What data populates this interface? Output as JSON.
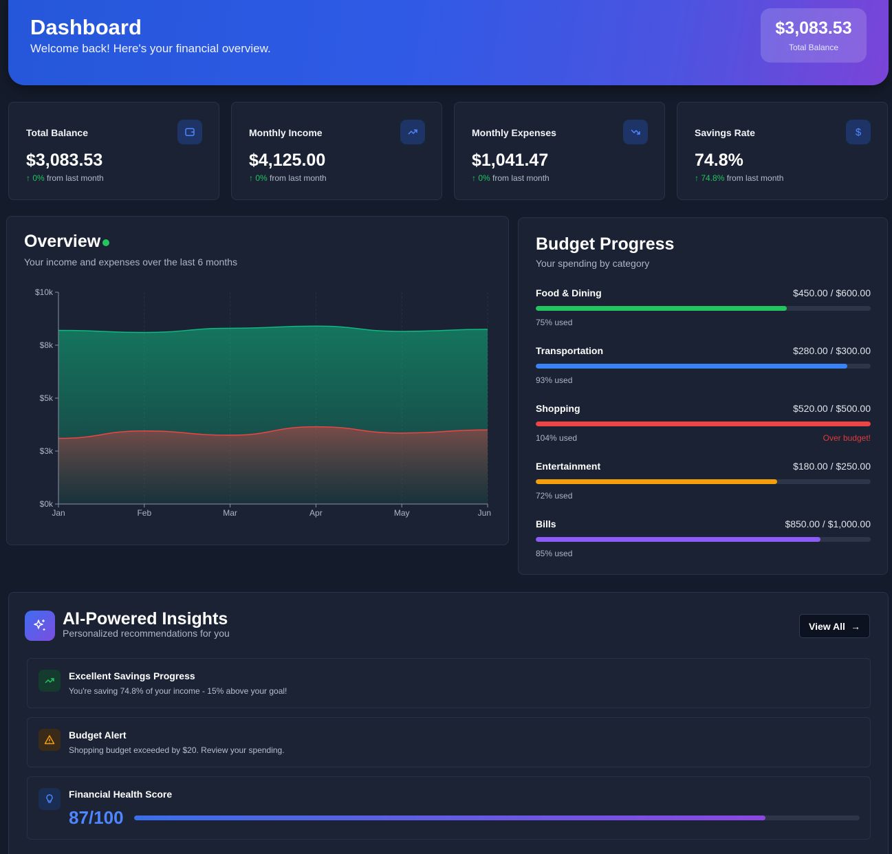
{
  "header": {
    "title": "Dashboard",
    "subtitle": "Welcome back! Here's your financial overview.",
    "balance_amount": "$3,083.53",
    "balance_label": "Total Balance"
  },
  "stats": [
    {
      "title": "Total Balance",
      "value": "$3,083.53",
      "change": "0%",
      "change_text": "from last month",
      "icon": "wallet-icon"
    },
    {
      "title": "Monthly Income",
      "value": "$4,125.00",
      "change": "0%",
      "change_text": "from last month",
      "icon": "trending-up-icon"
    },
    {
      "title": "Monthly Expenses",
      "value": "$1,041.47",
      "change": "0%",
      "change_text": "from last month",
      "icon": "trending-down-icon"
    },
    {
      "title": "Savings Rate",
      "value": "74.8%",
      "change": "74.8%",
      "change_text": "from last month",
      "icon": "dollar-icon"
    }
  ],
  "overview": {
    "title": "Overview",
    "subtitle": "Your income and expenses over the last 6 months"
  },
  "chart_data": {
    "type": "area",
    "categories": [
      "Jan",
      "Feb",
      "Mar",
      "Apr",
      "May",
      "Jun"
    ],
    "y_ticks": [
      "$0k",
      "$3k",
      "$5k",
      "$8k",
      "$10k"
    ],
    "ylim": [
      0,
      10000
    ],
    "series": [
      {
        "values": [
          8200,
          8100,
          8300,
          8400,
          8150,
          8250
        ],
        "color": "#10b981"
      },
      {
        "values": [
          3100,
          3450,
          3250,
          3650,
          3350,
          3500
        ],
        "color": "#ef4444"
      }
    ],
    "grid": true
  },
  "budget": {
    "title": "Budget Progress",
    "subtitle": "Your spending by category",
    "items": [
      {
        "name": "Food & Dining",
        "amounts": "$450.00 / $600.00",
        "used": "75% used",
        "pct": 75,
        "color": "#22c55e",
        "warning": ""
      },
      {
        "name": "Transportation",
        "amounts": "$280.00 / $300.00",
        "used": "93% used",
        "pct": 93,
        "color": "#3b82f6",
        "warning": ""
      },
      {
        "name": "Shopping",
        "amounts": "$520.00 / $500.00",
        "used": "104% used",
        "pct": 100,
        "color": "#ef4444",
        "warning": "Over budget!"
      },
      {
        "name": "Entertainment",
        "amounts": "$180.00 / $250.00",
        "used": "72% used",
        "pct": 72,
        "color": "#f59e0b",
        "warning": ""
      },
      {
        "name": "Bills",
        "amounts": "$850.00 / $1,000.00",
        "used": "85% used",
        "pct": 85,
        "color": "#8b5cf6",
        "warning": ""
      }
    ]
  },
  "insights": {
    "title": "AI-Powered Insights",
    "subtitle": "Personalized recommendations for you",
    "view_all": "View All",
    "items": [
      {
        "title": "Excellent Savings Progress",
        "desc": "You're saving 74.8% of your income - 15% above your goal!",
        "icon": "trending-up-icon"
      },
      {
        "title": "Budget Alert",
        "desc": "Shopping budget exceeded by $20. Review your spending.",
        "icon": "warning-icon"
      },
      {
        "title": "Financial Health Score",
        "score": "87/100",
        "score_pct": 87,
        "icon": "lightbulb-icon"
      }
    ]
  }
}
